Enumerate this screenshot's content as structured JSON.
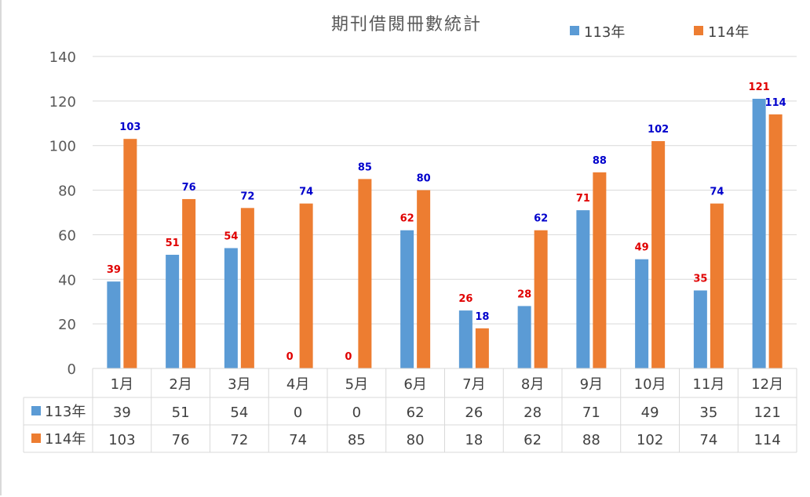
{
  "chart_data": {
    "type": "bar",
    "title": "期刊借閱冊數統計",
    "categories": [
      "1月",
      "2月",
      "3月",
      "4月",
      "5月",
      "6月",
      "7月",
      "8月",
      "9月",
      "10月",
      "11月",
      "12月"
    ],
    "series": [
      {
        "name": "113年",
        "color": "#5b9bd5",
        "label_color": "#e00000",
        "values": [
          39,
          51,
          54,
          0,
          0,
          62,
          26,
          28,
          71,
          49,
          35,
          121
        ]
      },
      {
        "name": "114年",
        "color": "#ed7d31",
        "label_color": "#0000cc",
        "values": [
          103,
          76,
          72,
          74,
          85,
          80,
          18,
          62,
          88,
          102,
          74,
          114
        ]
      }
    ],
    "ylim": [
      0,
      140
    ],
    "yticks": [
      0,
      20,
      40,
      60,
      80,
      100,
      120,
      140
    ],
    "grid": true,
    "legend": "top-right",
    "data_table": true
  }
}
